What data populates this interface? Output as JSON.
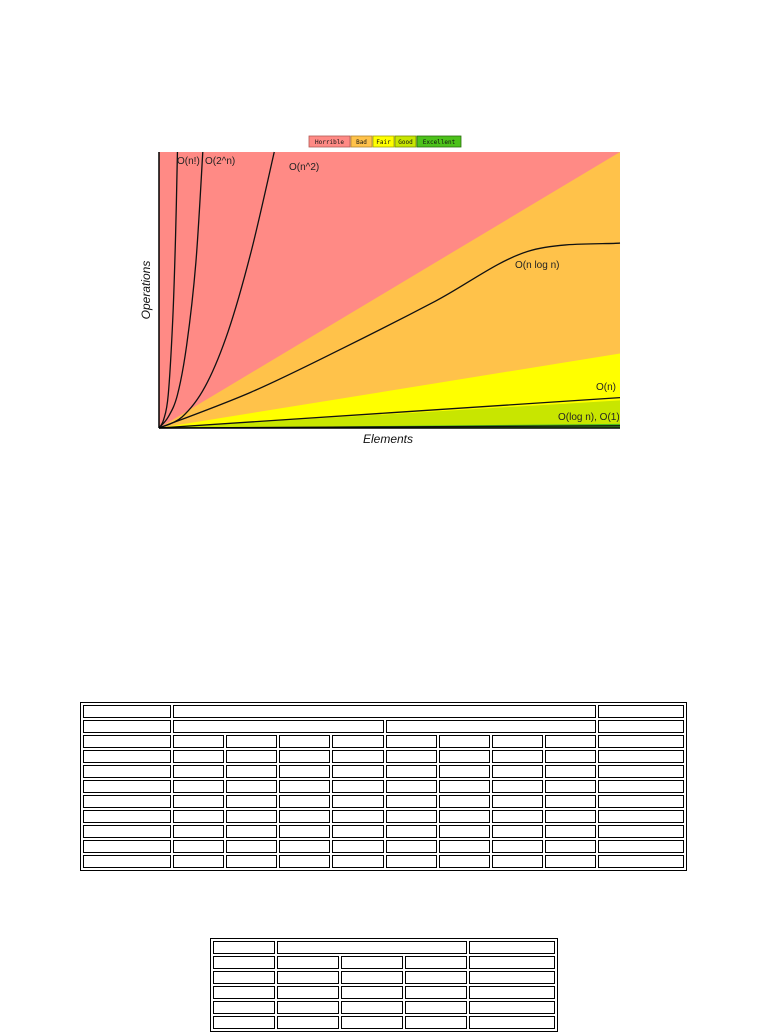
{
  "chart_data": {
    "type": "area",
    "title": "",
    "xlabel": "Elements",
    "ylabel": "Operations",
    "x_range": [
      0,
      100
    ],
    "y_range": [
      0,
      100
    ],
    "legend": {
      "placement": "top-center",
      "items": [
        {
          "label": "Horrible",
          "color": "#ff8a85",
          "border": "#b35a55"
        },
        {
          "label": "Bad",
          "color": "#ffc24a",
          "border": "#b3862e"
        },
        {
          "label": "Fair",
          "color": "#ffff00",
          "border": "#a6a600"
        },
        {
          "label": "Good",
          "color": "#c8e600",
          "border": "#7a8c00"
        },
        {
          "label": "Excellent",
          "color": "#4cc21a",
          "border": "#2a6e0e"
        }
      ]
    },
    "regions": [
      {
        "name": "Horrible",
        "color": "#ff8a85",
        "upper": [
          [
            0,
            100
          ],
          [
            100,
            100
          ]
        ]
      },
      {
        "name": "Bad",
        "color": "#ffc24a",
        "upper": [
          [
            0,
            0
          ],
          [
            100,
            100
          ]
        ]
      },
      {
        "name": "Fair",
        "color": "#ffff00",
        "upper": [
          [
            0,
            0
          ],
          [
            100,
            27
          ]
        ]
      },
      {
        "name": "Good",
        "color": "#c8e600",
        "upper": [
          [
            0,
            0
          ],
          [
            100,
            10
          ]
        ]
      },
      {
        "name": "Excellent",
        "color": "#4cc21a",
        "upper": [
          [
            0,
            0
          ],
          [
            100,
            1.5
          ]
        ]
      }
    ],
    "series": [
      {
        "name": "O(n!)",
        "points": [
          [
            0,
            0
          ],
          [
            1,
            3
          ],
          [
            2,
            12
          ],
          [
            3,
            40
          ],
          [
            3.6,
            70
          ],
          [
            4,
            100
          ]
        ]
      },
      {
        "name": "O(2^n)",
        "points": [
          [
            0,
            0
          ],
          [
            2,
            4
          ],
          [
            4,
            12
          ],
          [
            6,
            30
          ],
          [
            8,
            60
          ],
          [
            9.5,
            100
          ]
        ]
      },
      {
        "name": "O(n^2)",
        "points": [
          [
            0,
            0
          ],
          [
            5,
            4
          ],
          [
            10,
            15
          ],
          [
            15,
            35
          ],
          [
            20,
            64
          ],
          [
            25,
            100
          ]
        ]
      },
      {
        "name": "O(n log n)",
        "points": [
          [
            0,
            0
          ],
          [
            20,
            13
          ],
          [
            40,
            29
          ],
          [
            60,
            46
          ],
          [
            80,
            64
          ],
          [
            100,
            67
          ]
        ]
      },
      {
        "name": "O(n)",
        "points": [
          [
            0,
            0
          ],
          [
            100,
            11
          ]
        ]
      },
      {
        "name": "O(log n), O(1)",
        "points": [
          [
            0,
            0
          ],
          [
            100,
            0.8
          ]
        ]
      }
    ]
  },
  "tables": {
    "big": {
      "rows": 11,
      "cols": 10
    },
    "small": {
      "rows": 6,
      "cols": 5
    }
  }
}
